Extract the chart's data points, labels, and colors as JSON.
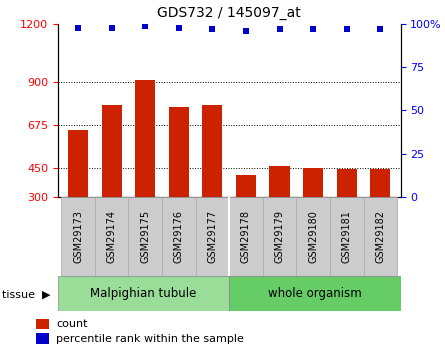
{
  "title": "GDS732 / 145097_at",
  "samples": [
    "GSM29173",
    "GSM29174",
    "GSM29175",
    "GSM29176",
    "GSM29177",
    "GSM29178",
    "GSM29179",
    "GSM29180",
    "GSM29181",
    "GSM29182"
  ],
  "counts": [
    650,
    780,
    910,
    770,
    778,
    415,
    460,
    450,
    445,
    445
  ],
  "percentile_ranks": [
    98,
    98,
    99,
    98,
    97,
    96,
    97,
    97,
    97,
    97
  ],
  "group1_label": "Malpighian tubule",
  "group1_count": 5,
  "group2_label": "whole organism",
  "group2_count": 5,
  "tissue_label": "tissue",
  "left_ylim": [
    300,
    1200
  ],
  "left_yticks": [
    300,
    450,
    675,
    900,
    1200
  ],
  "right_ylim": [
    0,
    100
  ],
  "right_yticks": [
    0,
    25,
    50,
    75,
    100
  ],
  "right_yticklabels": [
    "0",
    "25",
    "50",
    "75",
    "100%"
  ],
  "bar_color": "#cc2200",
  "dot_color": "#0000cc",
  "group1_color": "#99dd99",
  "group2_color": "#66cc66",
  "tick_bg_color": "#cccccc",
  "legend_count_label": "count",
  "legend_pct_label": "percentile rank within the sample",
  "background_color": "#ffffff",
  "dotted_lines": [
    450,
    675,
    900
  ],
  "bar_width": 0.6
}
